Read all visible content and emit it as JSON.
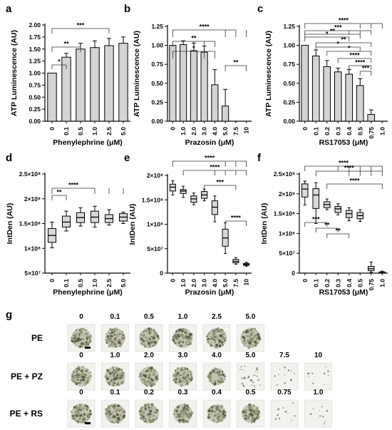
{
  "colors": {
    "bar_fill": "#d4d4d4",
    "box_fill": "#d9d9d9",
    "stroke": "#000000",
    "tissue": "#8a8f6e",
    "tile_bg": "#f3f2ee"
  },
  "chart_data": [
    {
      "panel": "a",
      "type": "bar",
      "categories": [
        "0",
        "0.1",
        "0.5",
        "1.0",
        "2.5",
        "5.0"
      ],
      "values": [
        1.0,
        1.33,
        1.5,
        1.53,
        1.57,
        1.62
      ],
      "errors": [
        0.0,
        0.08,
        0.12,
        0.14,
        0.15,
        0.13
      ],
      "xlabel": "Phenylephrine (μM)",
      "ylabel": "ATP Luminescence (AU)",
      "ylim": [
        0,
        2.0
      ],
      "yticks": [
        "0.00",
        "0.25",
        "0.50",
        "0.75",
        "1.00",
        "1.25",
        "1.50",
        "1.75",
        "2.00"
      ],
      "annotations": [
        {
          "from": "0",
          "to": "0.1",
          "text": "*"
        },
        {
          "from": "0",
          "to": "0.5",
          "text": "**"
        },
        {
          "from": "0",
          "to": "2.5",
          "text": "***"
        }
      ]
    },
    {
      "panel": "b",
      "type": "bar",
      "categories": [
        "0",
        "1.0",
        "2.0",
        "3.0",
        "4.0",
        "5.0",
        "7.5",
        "10"
      ],
      "values": [
        1.0,
        1.01,
        0.93,
        0.91,
        0.48,
        0.2,
        0.0,
        0.0
      ],
      "errors": [
        0.0,
        0.05,
        0.1,
        0.08,
        0.2,
        0.22,
        0.0,
        0.0
      ],
      "xlabel": "Prazosin (μM)",
      "ylabel": "ATP Luminescence (AU)",
      "ylim": [
        0,
        1.25
      ],
      "yticks": [
        "0.00",
        "0.25",
        "0.50",
        "0.75",
        "1.00",
        "1.25"
      ],
      "annotations": [
        {
          "text": "****"
        },
        {
          "text": "**"
        },
        {
          "text": "*"
        },
        {
          "text": "**"
        }
      ]
    },
    {
      "panel": "c",
      "type": "bar",
      "categories": [
        "0",
        "0.1",
        "0.2",
        "0.3",
        "0.4",
        "0.5",
        "0.75",
        "1.0"
      ],
      "values": [
        1.0,
        0.86,
        0.72,
        0.65,
        0.62,
        0.47,
        0.09,
        0.0
      ],
      "errors": [
        0.0,
        0.08,
        0.08,
        0.05,
        0.06,
        0.09,
        0.06,
        0.0
      ],
      "xlabel": "RS17053 (μM)",
      "ylabel": "ATP Luminescence (AU)",
      "ylim": [
        0,
        1.25
      ],
      "yticks": [
        "0.00",
        "0.25",
        "0.50",
        "0.75",
        "1.00",
        "1.25"
      ],
      "annotations": [
        {
          "text": "****"
        },
        {
          "text": "***"
        },
        {
          "text": "**"
        },
        {
          "text": "*"
        },
        {
          "text": "**"
        },
        {
          "text": "*"
        },
        {
          "text": "*"
        },
        {
          "text": "****"
        },
        {
          "text": "****"
        },
        {
          "text": "***"
        }
      ]
    },
    {
      "panel": "d",
      "type": "box",
      "categories": [
        "0",
        "0.1",
        "0.5",
        "1.0",
        "2.5",
        "5.0"
      ],
      "ylim": [
        50000000,
        250000000
      ],
      "yticks": [
        "5×10⁷",
        "1×10⁸",
        "1.5×10⁸",
        "2×10⁸",
        "2.5×10⁸"
      ],
      "boxes": [
        {
          "min": 101000000,
          "q1": 112000000,
          "med": 126000000,
          "q3": 140000000,
          "max": 153000000
        },
        {
          "min": 135000000,
          "q1": 143000000,
          "med": 153000000,
          "q3": 165000000,
          "max": 175000000
        },
        {
          "min": 145000000,
          "q1": 152000000,
          "med": 162000000,
          "q3": 172000000,
          "max": 182000000
        },
        {
          "min": 143000000,
          "q1": 152000000,
          "med": 163000000,
          "q3": 175000000,
          "max": 185000000
        },
        {
          "min": 147000000,
          "q1": 152000000,
          "med": 160000000,
          "q3": 168000000,
          "max": 178000000
        },
        {
          "min": 150000000,
          "q1": 155000000,
          "med": 163000000,
          "q3": 170000000,
          "max": 173000000
        }
      ],
      "xlabel": "Phenylephrine (μM)",
      "ylabel": "IntDen (AU)",
      "annotations": [
        {
          "text": "**"
        },
        {
          "text": "****"
        }
      ]
    },
    {
      "panel": "e",
      "type": "box",
      "categories": [
        "0",
        "1.0",
        "2.0",
        "3.0",
        "4.0",
        "5.0",
        "7.5",
        "10"
      ],
      "ylim": [
        0,
        200000000
      ],
      "yticks": [
        "0",
        "5×10⁷",
        "1×10⁸",
        "1.5×10⁸",
        "2×10⁸"
      ],
      "boxes": [
        {
          "min": 160000000,
          "q1": 168000000,
          "med": 176000000,
          "q3": 182000000,
          "max": 189000000
        },
        {
          "min": 155000000,
          "q1": 163000000,
          "med": 168000000,
          "q3": 171000000,
          "max": 178000000
        },
        {
          "min": 140000000,
          "q1": 145000000,
          "med": 152000000,
          "q3": 158000000,
          "max": 164000000
        },
        {
          "min": 148000000,
          "q1": 153000000,
          "med": 160000000,
          "q3": 167000000,
          "max": 172000000
        },
        {
          "min": 105000000,
          "q1": 120000000,
          "med": 135000000,
          "q3": 148000000,
          "max": 158000000
        },
        {
          "min": 40000000,
          "q1": 55000000,
          "med": 72000000,
          "q3": 90000000,
          "max": 103000000
        },
        {
          "min": 18000000,
          "q1": 21000000,
          "med": 24000000,
          "q3": 28000000,
          "max": 32000000
        },
        {
          "min": 14000000,
          "q1": 16000000,
          "med": 18000000,
          "q3": 20000000,
          "max": 22000000
        }
      ],
      "xlabel": "Prazosin (μM)",
      "ylabel": "IntDen (AU)",
      "annotations": [
        {
          "text": "****"
        },
        {
          "text": "****"
        },
        {
          "text": "***"
        },
        {
          "text": "****"
        }
      ]
    },
    {
      "panel": "f",
      "type": "box",
      "categories": [
        "0",
        "0.1",
        "0.2",
        "0.3",
        "0.4",
        "0.5",
        "0.75",
        "1.0"
      ],
      "ylim": [
        0,
        250000000
      ],
      "yticks": [
        "0",
        "5×10⁷",
        "1×10⁸",
        "1.5×10⁸",
        "2×10⁸",
        "2.5×10⁸"
      ],
      "boxes": [
        {
          "min": 172000000,
          "q1": 192000000,
          "med": 212000000,
          "q3": 225000000,
          "max": 232000000
        },
        {
          "min": 125000000,
          "q1": 163000000,
          "med": 197000000,
          "q3": 213000000,
          "max": 228000000
        },
        {
          "min": 160000000,
          "q1": 165000000,
          "med": 173000000,
          "q3": 180000000,
          "max": 187000000
        },
        {
          "min": 147000000,
          "q1": 153000000,
          "med": 162000000,
          "q3": 168000000,
          "max": 175000000
        },
        {
          "min": 132000000,
          "q1": 140000000,
          "med": 150000000,
          "q3": 158000000,
          "max": 165000000
        },
        {
          "min": 130000000,
          "q1": 137000000,
          "med": 145000000,
          "q3": 153000000,
          "max": 160000000
        },
        {
          "min": 2000000,
          "q1": 6000000,
          "med": 11000000,
          "q3": 17000000,
          "max": 28000000
        },
        {
          "min": 0,
          "q1": 1000000,
          "med": 2000000,
          "q3": 3000000,
          "max": 5000000
        }
      ],
      "xlabel": "RS17053 (μM)",
      "ylabel": "IntDen (AU)",
      "annotations": [
        {
          "text": "****"
        },
        {
          "text": "****"
        },
        {
          "text": "****"
        },
        {
          "text": "***"
        },
        {
          "text": "**"
        },
        {
          "text": "**"
        }
      ]
    }
  ],
  "micrograph": {
    "panel": "g",
    "rows": [
      {
        "label": "PE",
        "columns": [
          "0",
          "0.1",
          "0.5",
          "1.0",
          "2.5",
          "5.0"
        ],
        "density": [
          1,
          1,
          1,
          1,
          1,
          1
        ]
      },
      {
        "label": "PE + PZ",
        "columns": [
          "0",
          "1.0",
          "2.0",
          "3.0",
          "4.0",
          "5.0",
          "7.5",
          "10"
        ],
        "density": [
          1,
          1,
          0.95,
          0.9,
          0.7,
          0.45,
          0.15,
          0.1
        ]
      },
      {
        "label": "PE + RS",
        "columns": [
          "0",
          "0.1",
          "0.2",
          "0.3",
          "0.4",
          "0.5",
          "0.75",
          "1.0"
        ],
        "density": [
          1,
          1,
          0.95,
          0.9,
          0.85,
          0.8,
          0.15,
          0.08
        ]
      }
    ]
  }
}
